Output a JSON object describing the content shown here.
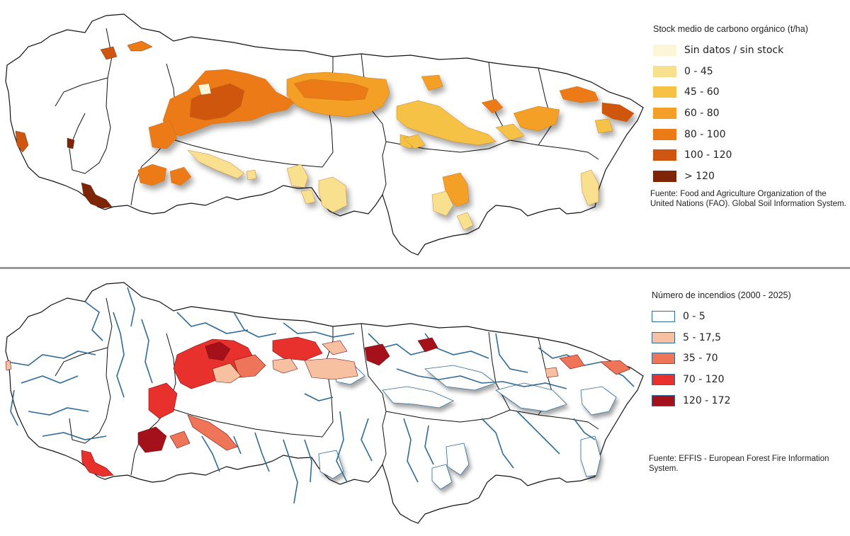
{
  "maps": {
    "top": {
      "legend_title": "Stock medio de carbono orgánico (t/ha)",
      "classes": [
        {
          "label": "Sin datos / sin stock",
          "color": "#fdf5d8"
        },
        {
          "label": "0 - 45",
          "color": "#f8e08e"
        },
        {
          "label": "45 - 60",
          "color": "#f5c244"
        },
        {
          "label": "60 - 80",
          "color": "#f4a028"
        },
        {
          "label": "80 - 100",
          "color": "#ec7a17"
        },
        {
          "label": "100 - 120",
          "color": "#cf5610"
        },
        {
          "label": "> 120",
          "color": "#7e2508"
        }
      ],
      "source": "Fuente: Food and Agriculture Organization of the United Nations (FAO). Global Soil Information System."
    },
    "bottom": {
      "legend_title": "Número de incendios (2000 - 2025)",
      "classes": [
        {
          "label": "0 - 5",
          "color": "#ffffff"
        },
        {
          "label": "5 - 17,5",
          "color": "#f7c0a0"
        },
        {
          "label": "35 - 70",
          "color": "#ef7558"
        },
        {
          "label": "70 - 120",
          "color": "#e8302c"
        },
        {
          "label": "120 - 172",
          "color": "#a4111a"
        }
      ],
      "source": "Fuente: EFFIS - European Forest Fire Information System.",
      "river_color": "#2f6a98"
    }
  }
}
